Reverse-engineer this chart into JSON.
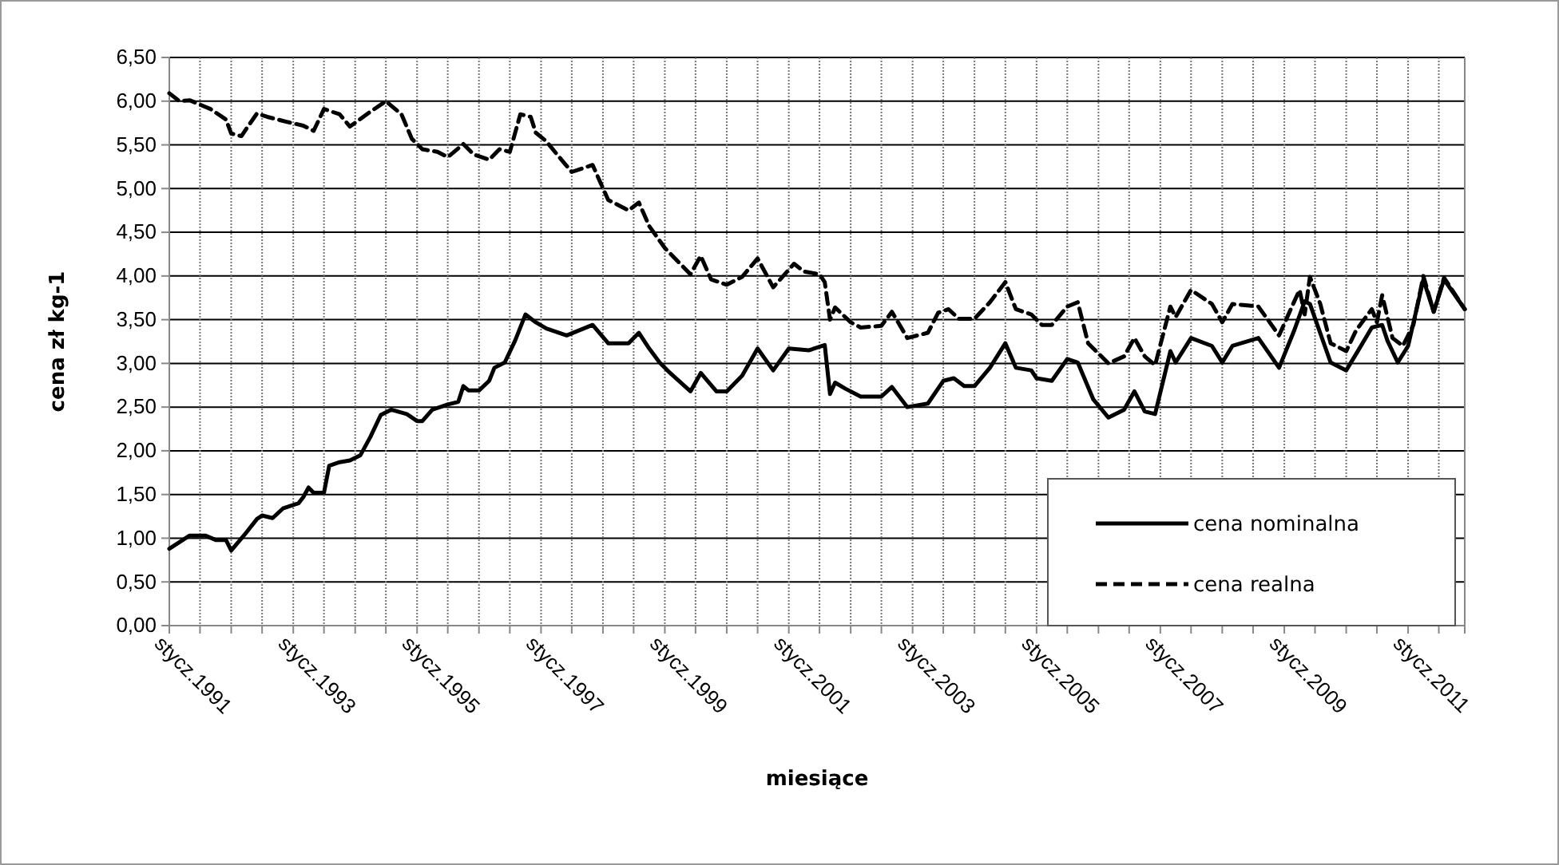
{
  "chart_data": {
    "type": "line",
    "xlabel": "miesiące",
    "ylabel": "cena zł kg-1",
    "xlim": [
      "1991-01",
      "2011-12"
    ],
    "xticks": [
      {
        "value": "1991-01",
        "label": "stycz.1991"
      },
      {
        "value": "1991-07",
        "label": null
      },
      {
        "value": "1992-01",
        "label": null
      },
      {
        "value": "1992-07",
        "label": null
      },
      {
        "value": "1993-01",
        "label": "stycz.1993"
      },
      {
        "value": "1993-07",
        "label": null
      },
      {
        "value": "1994-01",
        "label": null
      },
      {
        "value": "1994-07",
        "label": null
      },
      {
        "value": "1995-01",
        "label": "stycz.1995"
      },
      {
        "value": "1995-07",
        "label": null
      },
      {
        "value": "1996-01",
        "label": null
      },
      {
        "value": "1996-07",
        "label": null
      },
      {
        "value": "1997-01",
        "label": "stycz.1997"
      },
      {
        "value": "1997-07",
        "label": null
      },
      {
        "value": "1998-01",
        "label": null
      },
      {
        "value": "1998-07",
        "label": null
      },
      {
        "value": "1999-01",
        "label": "stycz.1999"
      },
      {
        "value": "1999-07",
        "label": null
      },
      {
        "value": "2000-01",
        "label": null
      },
      {
        "value": "2000-07",
        "label": null
      },
      {
        "value": "2001-01",
        "label": "stycz.2001"
      },
      {
        "value": "2001-07",
        "label": null
      },
      {
        "value": "2002-01",
        "label": null
      },
      {
        "value": "2002-07",
        "label": null
      },
      {
        "value": "2003-01",
        "label": "stycz.2003"
      },
      {
        "value": "2003-07",
        "label": null
      },
      {
        "value": "2004-01",
        "label": null
      },
      {
        "value": "2004-07",
        "label": null
      },
      {
        "value": "2005-01",
        "label": "stycz.2005"
      },
      {
        "value": "2005-07",
        "label": null
      },
      {
        "value": "2006-01",
        "label": null
      },
      {
        "value": "2006-07",
        "label": null
      },
      {
        "value": "2007-01",
        "label": "stycz.2007"
      },
      {
        "value": "2007-07",
        "label": null
      },
      {
        "value": "2008-01",
        "label": null
      },
      {
        "value": "2008-07",
        "label": null
      },
      {
        "value": "2009-01",
        "label": "stycz.2009"
      },
      {
        "value": "2009-07",
        "label": null
      },
      {
        "value": "2010-01",
        "label": null
      },
      {
        "value": "2010-07",
        "label": null
      },
      {
        "value": "2011-01",
        "label": "stycz.2011"
      },
      {
        "value": "2011-07",
        "label": null
      }
    ],
    "ylim": [
      0,
      6.5
    ],
    "yticks": [
      {
        "value": 0,
        "label": "0,00"
      },
      {
        "value": 0.5,
        "label": "0,50"
      },
      {
        "value": 1,
        "label": "1,00"
      },
      {
        "value": 1.5,
        "label": "1,50"
      },
      {
        "value": 2,
        "label": "2,00"
      },
      {
        "value": 2.5,
        "label": "2,50"
      },
      {
        "value": 3,
        "label": "3,00"
      },
      {
        "value": 3.5,
        "label": "3,50"
      },
      {
        "value": 4,
        "label": "4,00"
      },
      {
        "value": 4.5,
        "label": "4,50"
      },
      {
        "value": 5,
        "label": "5,00"
      },
      {
        "value": 5.5,
        "label": "5,50"
      },
      {
        "value": 6,
        "label": "6,00"
      },
      {
        "value": 6.5,
        "label": "6,50"
      }
    ],
    "grid": true,
    "legend": "bottom right",
    "series": [
      {
        "name": "cena nominalna",
        "color": "#000000",
        "line_style": "solid",
        "x": [
          "1991-01",
          "1991-05",
          "1991-08",
          "1991-10",
          "1991-12",
          "1992-01",
          "1992-04",
          "1992-06",
          "1992-07",
          "1992-09",
          "1992-11",
          "1993-02",
          "1993-03",
          "1993-04",
          "1993-05",
          "1993-07",
          "1993-08",
          "1993-10",
          "1993-12",
          "1994-02",
          "1994-04",
          "1994-06",
          "1994-08",
          "1994-11",
          "1995-01",
          "1995-02",
          "1995-04",
          "1995-07",
          "1995-09",
          "1995-10",
          "1995-11",
          "1996-01",
          "1996-03",
          "1996-04",
          "1996-06",
          "1996-08",
          "1996-10",
          "1996-12",
          "1997-02",
          "1997-06",
          "1997-11",
          "1998-02",
          "1998-06",
          "1998-08",
          "1998-10",
          "1998-12",
          "1999-02",
          "1999-06",
          "1999-08",
          "1999-11",
          "2000-01",
          "2000-04",
          "2000-07",
          "2000-10",
          "2001-01",
          "2001-05",
          "2001-08",
          "2001-09",
          "2001-10",
          "2001-12",
          "2002-03",
          "2002-07",
          "2002-09",
          "2002-12",
          "2003-04",
          "2003-07",
          "2003-09",
          "2003-11",
          "2004-01",
          "2004-04",
          "2004-07",
          "2004-09",
          "2004-12",
          "2005-01",
          "2005-04",
          "2005-07",
          "2005-09",
          "2005-12",
          "2006-03",
          "2006-06",
          "2006-08",
          "2006-10",
          "2006-12",
          "2007-03",
          "2007-04",
          "2007-07",
          "2007-11",
          "2008-01",
          "2008-03",
          "2008-08",
          "2008-12",
          "2009-03",
          "2009-05",
          "2009-06",
          "2009-10",
          "2010-01",
          "2010-03",
          "2010-06",
          "2010-08",
          "2010-09",
          "2010-11",
          "2011-01",
          "2011-04",
          "2011-06",
          "2011-08",
          "2011-12"
        ],
        "values": [
          0.88,
          1.03,
          1.03,
          0.98,
          0.98,
          0.86,
          1.07,
          1.22,
          1.26,
          1.23,
          1.34,
          1.4,
          1.47,
          1.58,
          1.52,
          1.52,
          1.83,
          1.87,
          1.89,
          1.95,
          2.16,
          2.41,
          2.47,
          2.42,
          2.34,
          2.34,
          2.47,
          2.53,
          2.56,
          2.74,
          2.69,
          2.69,
          2.8,
          2.95,
          3.01,
          3.26,
          3.56,
          3.47,
          3.4,
          3.32,
          3.44,
          3.23,
          3.23,
          3.35,
          3.17,
          3.01,
          2.89,
          2.68,
          2.89,
          2.68,
          2.68,
          2.86,
          3.17,
          2.92,
          3.17,
          3.15,
          3.21,
          2.65,
          2.78,
          2.71,
          2.62,
          2.62,
          2.73,
          2.5,
          2.54,
          2.8,
          2.83,
          2.74,
          2.74,
          2.95,
          3.23,
          2.95,
          2.92,
          2.83,
          2.8,
          3.05,
          3.01,
          2.59,
          2.38,
          2.47,
          2.68,
          2.45,
          2.42,
          3.14,
          3.01,
          3.29,
          3.2,
          3.01,
          3.2,
          3.29,
          2.95,
          3.38,
          3.71,
          3.68,
          3.01,
          2.92,
          3.11,
          3.41,
          3.44,
          3.26,
          3.01,
          3.2,
          3.96,
          3.59,
          3.96,
          3.62
        ]
      },
      {
        "name": "cena realna",
        "color": "#000000",
        "line_style": "dashed",
        "x": [
          "1991-01",
          "1991-03",
          "1991-05",
          "1991-09",
          "1991-12",
          "1992-01",
          "1992-03",
          "1992-04",
          "1992-06",
          "1992-08",
          "1992-12",
          "1993-03",
          "1993-05",
          "1993-07",
          "1993-10",
          "1993-12",
          "1994-04",
          "1994-07",
          "1994-10",
          "1994-12",
          "1995-02",
          "1995-05",
          "1995-07",
          "1995-10",
          "1995-12",
          "1996-03",
          "1996-05",
          "1996-07",
          "1996-09",
          "1996-11",
          "1996-12",
          "1997-02",
          "1997-05",
          "1997-07",
          "1997-11",
          "1998-02",
          "1998-06",
          "1998-08",
          "1998-10",
          "1999-01",
          "1999-06",
          "1999-08",
          "1999-10",
          "2000-01",
          "2000-04",
          "2000-07",
          "2000-10",
          "2001-02",
          "2001-04",
          "2001-07",
          "2001-08",
          "2001-09",
          "2001-10",
          "2002-01",
          "2002-03",
          "2002-07",
          "2002-09",
          "2002-12",
          "2003-04",
          "2003-06",
          "2003-08",
          "2003-10",
          "2004-01",
          "2004-04",
          "2004-07",
          "2004-09",
          "2004-12",
          "2005-02",
          "2005-04",
          "2005-07",
          "2005-09",
          "2005-11",
          "2006-03",
          "2006-06",
          "2006-08",
          "2006-10",
          "2006-12",
          "2007-03",
          "2007-04",
          "2007-07",
          "2007-11",
          "2008-01",
          "2008-03",
          "2008-08",
          "2008-12",
          "2009-03",
          "2009-04",
          "2009-05",
          "2009-06",
          "2009-08",
          "2009-10",
          "2010-01",
          "2010-03",
          "2010-06",
          "2010-07",
          "2010-08",
          "2010-10",
          "2010-12",
          "2011-02",
          "2011-04",
          "2011-06",
          "2011-08",
          "2011-12"
        ],
        "values": [
          6.09,
          6.0,
          6.01,
          5.91,
          5.79,
          5.63,
          5.6,
          5.69,
          5.86,
          5.82,
          5.76,
          5.72,
          5.66,
          5.91,
          5.85,
          5.71,
          5.88,
          6.0,
          5.85,
          5.57,
          5.45,
          5.42,
          5.36,
          5.51,
          5.39,
          5.33,
          5.45,
          5.42,
          5.85,
          5.82,
          5.64,
          5.54,
          5.33,
          5.19,
          5.27,
          4.87,
          4.75,
          4.84,
          4.57,
          4.32,
          4.02,
          4.23,
          3.96,
          3.9,
          3.99,
          4.2,
          3.87,
          4.14,
          4.05,
          4.02,
          3.93,
          3.5,
          3.64,
          3.47,
          3.41,
          3.43,
          3.59,
          3.29,
          3.35,
          3.58,
          3.62,
          3.51,
          3.51,
          3.7,
          3.93,
          3.62,
          3.56,
          3.44,
          3.44,
          3.65,
          3.7,
          3.23,
          3.0,
          3.08,
          3.29,
          3.08,
          2.98,
          3.65,
          3.53,
          3.84,
          3.68,
          3.47,
          3.68,
          3.65,
          3.32,
          3.71,
          3.84,
          3.56,
          3.99,
          3.68,
          3.23,
          3.14,
          3.38,
          3.62,
          3.47,
          3.78,
          3.29,
          3.2,
          3.44,
          4.0,
          3.59,
          3.98,
          3.62
        ]
      }
    ]
  }
}
